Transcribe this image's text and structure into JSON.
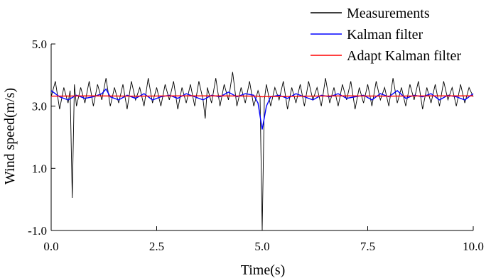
{
  "chart_data": {
    "type": "line",
    "xlabel": "Time(s)",
    "ylabel": "Wind speed(m/s)",
    "xlim": [
      0,
      10
    ],
    "ylim": [
      -1,
      5
    ],
    "x_ticks": [
      0,
      2.5,
      5,
      7.5,
      10
    ],
    "x_tick_labels": [
      "0.0",
      "2.5",
      "5.0",
      "7.5",
      "10.0"
    ],
    "y_ticks": [
      -1,
      1,
      3,
      5
    ],
    "y_tick_labels": [
      "-1.0",
      "1.0",
      "3.0",
      "5.0"
    ],
    "grid": false,
    "legend_position": "top-right",
    "series": [
      {
        "name": "Measurements",
        "color": "#000000",
        "x": [
          0.0,
          0.1,
          0.2,
          0.3,
          0.4,
          0.45,
          0.5,
          0.55,
          0.6,
          0.7,
          0.8,
          0.9,
          1.0,
          1.1,
          1.2,
          1.3,
          1.4,
          1.5,
          1.6,
          1.7,
          1.8,
          1.9,
          2.0,
          2.1,
          2.2,
          2.3,
          2.4,
          2.5,
          2.6,
          2.7,
          2.8,
          2.9,
          3.0,
          3.1,
          3.2,
          3.3,
          3.4,
          3.5,
          3.6,
          3.65,
          3.7,
          3.8,
          3.9,
          4.0,
          4.1,
          4.2,
          4.3,
          4.4,
          4.5,
          4.6,
          4.7,
          4.8,
          4.9,
          4.95,
          5.0,
          5.05,
          5.1,
          5.2,
          5.3,
          5.4,
          5.5,
          5.6,
          5.7,
          5.8,
          5.9,
          6.0,
          6.1,
          6.2,
          6.3,
          6.4,
          6.5,
          6.6,
          6.7,
          6.8,
          6.9,
          7.0,
          7.1,
          7.2,
          7.3,
          7.4,
          7.5,
          7.6,
          7.7,
          7.8,
          7.9,
          8.0,
          8.1,
          8.2,
          8.3,
          8.4,
          8.5,
          8.6,
          8.7,
          8.8,
          8.9,
          9.0,
          9.1,
          9.2,
          9.3,
          9.4,
          9.5,
          9.6,
          9.7,
          9.8,
          9.9,
          10.0
        ],
        "y": [
          3.3,
          3.8,
          2.9,
          3.6,
          3.1,
          3.5,
          0.05,
          3.7,
          3.0,
          3.6,
          3.1,
          3.8,
          3.0,
          3.7,
          3.2,
          3.9,
          3.0,
          3.6,
          3.1,
          3.7,
          2.9,
          3.8,
          3.2,
          3.6,
          3.0,
          3.9,
          3.1,
          3.6,
          3.0,
          3.7,
          3.2,
          3.8,
          2.9,
          3.6,
          3.1,
          3.7,
          3.0,
          3.8,
          3.2,
          2.6,
          3.6,
          3.1,
          3.9,
          3.0,
          3.7,
          3.2,
          4.1,
          3.0,
          3.6,
          3.1,
          3.8,
          3.0,
          3.5,
          3.3,
          -1.0,
          3.2,
          3.7,
          3.0,
          3.6,
          3.2,
          3.8,
          2.9,
          3.6,
          3.1,
          3.7,
          3.0,
          3.8,
          3.2,
          3.6,
          3.0,
          3.9,
          3.1,
          3.6,
          3.0,
          3.7,
          3.2,
          3.8,
          2.9,
          3.6,
          3.1,
          3.7,
          3.0,
          3.8,
          3.2,
          3.6,
          3.0,
          3.9,
          3.1,
          3.6,
          3.0,
          3.7,
          3.2,
          3.8,
          2.9,
          3.6,
          3.1,
          3.7,
          3.0,
          3.8,
          3.2,
          3.6,
          3.0,
          3.7,
          3.1,
          3.6,
          3.3
        ]
      },
      {
        "name": "Kalman filter",
        "color": "#0000ff",
        "x": [
          0.0,
          0.2,
          0.4,
          0.6,
          0.8,
          1.0,
          1.2,
          1.3,
          1.4,
          1.6,
          1.8,
          2.0,
          2.2,
          2.4,
          2.6,
          2.8,
          3.0,
          3.2,
          3.4,
          3.6,
          3.8,
          4.0,
          4.2,
          4.4,
          4.6,
          4.8,
          4.9,
          5.0,
          5.1,
          5.2,
          5.4,
          5.6,
          5.8,
          6.0,
          6.2,
          6.4,
          6.6,
          6.8,
          7.0,
          7.2,
          7.4,
          7.6,
          7.8,
          8.0,
          8.2,
          8.4,
          8.6,
          8.8,
          9.0,
          9.2,
          9.4,
          9.6,
          9.8,
          10.0
        ],
        "y": [
          3.5,
          3.3,
          3.2,
          3.35,
          3.25,
          3.3,
          3.4,
          3.55,
          3.3,
          3.2,
          3.35,
          3.25,
          3.4,
          3.2,
          3.3,
          3.35,
          3.25,
          3.4,
          3.3,
          3.2,
          3.35,
          3.3,
          3.45,
          3.3,
          3.4,
          3.35,
          3.1,
          2.25,
          3.0,
          3.3,
          3.35,
          3.25,
          3.4,
          3.3,
          3.2,
          3.35,
          3.3,
          3.4,
          3.25,
          3.3,
          3.35,
          3.2,
          3.4,
          3.3,
          3.5,
          3.25,
          3.35,
          3.3,
          3.4,
          3.2,
          3.35,
          3.3,
          3.2,
          3.4
        ]
      },
      {
        "name": "Adapt Kalman filter",
        "color": "#ff0000",
        "x": [
          0.0,
          1.0,
          2.0,
          3.0,
          4.0,
          4.9,
          5.0,
          5.1,
          6.0,
          7.0,
          8.0,
          9.0,
          10.0
        ],
        "y": [
          3.32,
          3.33,
          3.32,
          3.33,
          3.33,
          3.32,
          3.3,
          3.31,
          3.32,
          3.33,
          3.32,
          3.33,
          3.33
        ]
      }
    ]
  }
}
